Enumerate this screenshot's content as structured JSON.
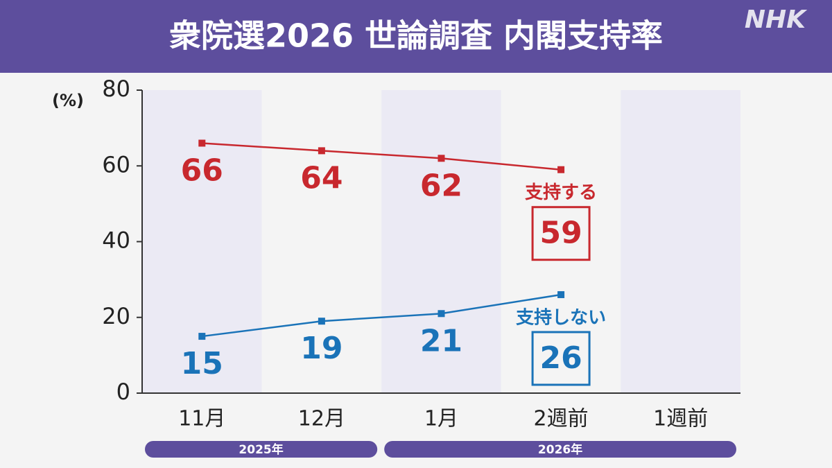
{
  "logo": "NHK",
  "chart_data": {
    "type": "line",
    "title": "衆院選2026 世論調査 内閣支持率",
    "y_label": "(%)",
    "categories": [
      "11月",
      "12月",
      "1月",
      "2週前",
      "1週前"
    ],
    "x_groups": [
      {
        "label": "2025年",
        "count": 2
      },
      {
        "label": "2026年",
        "count": 3
      }
    ],
    "series": [
      {
        "name": "支持する",
        "color": "#c8282e",
        "values": [
          66,
          64,
          62,
          59,
          null
        ]
      },
      {
        "name": "支持しない",
        "color": "#1a73b8",
        "values": [
          15,
          19,
          21,
          26,
          null
        ]
      }
    ],
    "ylim": [
      0,
      80
    ],
    "yticks": [
      0,
      20,
      40,
      60,
      80
    ],
    "grid": false
  }
}
